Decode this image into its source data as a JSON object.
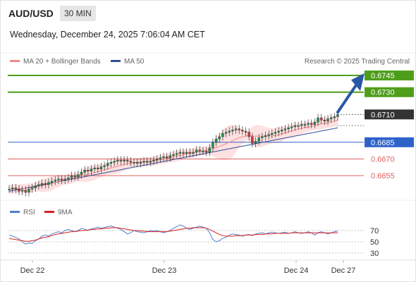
{
  "header": {
    "symbol": "AUD/USD",
    "timeframe": "30 MIN",
    "datetime": "Wednesday, December 24, 2025 7:06:04 AM CET",
    "credit": "Research © 2025 Trading Central"
  },
  "colors": {
    "resistance": "#4e9e1b",
    "support_blue": "#2e62c9",
    "support_red": "#e06060",
    "current": "#333333",
    "ma20": "#f08a8a",
    "bollinger_fill": "#fde0e0",
    "ma50": "#30509a",
    "arrow": "#2a56a8",
    "rsi": "#5080d0",
    "rsi_ma": "#d81e1e",
    "bull": "#1a9a50",
    "bear": "#d33b3b"
  },
  "chart_data": [
    {
      "type": "candlestick",
      "legend": [
        {
          "name": "MA 20 + Bollinger Bands",
          "color": "#f08a8a"
        },
        {
          "name": "MA 50",
          "color": "#30509a"
        }
      ],
      "legend_placement": "top-left",
      "grid": false,
      "ylim": [
        0.6638,
        0.6752
      ],
      "x_ticks": [
        "Dec 22",
        "Dec 23",
        "Dec 24",
        "Dec 27"
      ],
      "price_levels": [
        {
          "label": "0.6745",
          "value": 0.6745,
          "kind": "resistance"
        },
        {
          "label": "0.6730",
          "value": 0.673,
          "kind": "resistance"
        },
        {
          "label": "0.6710",
          "value": 0.671,
          "kind": "current"
        },
        {
          "label": "0.6685",
          "value": 0.6685,
          "kind": "support_blue"
        },
        {
          "label": "0.6670",
          "value": 0.667,
          "kind": "support_red"
        },
        {
          "label": "0.6655",
          "value": 0.6655,
          "kind": "support_red"
        }
      ],
      "close_series": [
        0.6643,
        0.6644,
        0.6643,
        0.6641,
        0.6642,
        0.664,
        0.6643,
        0.6644,
        0.6646,
        0.6647,
        0.6648,
        0.6647,
        0.6649,
        0.665,
        0.6651,
        0.6652,
        0.6651,
        0.6652,
        0.6653,
        0.6655,
        0.6654,
        0.6656,
        0.6658,
        0.666,
        0.6659,
        0.6661,
        0.6662,
        0.6661,
        0.6663,
        0.6664,
        0.6666,
        0.6667,
        0.6668,
        0.6669,
        0.6668,
        0.6669,
        0.6668,
        0.6667,
        0.6667,
        0.6666,
        0.6667,
        0.6668,
        0.6667,
        0.6668,
        0.6669,
        0.667,
        0.6671,
        0.6672,
        0.6671,
        0.6673,
        0.6674,
        0.6675,
        0.6676,
        0.6675,
        0.6676,
        0.6675,
        0.6676,
        0.6678,
        0.6677,
        0.6677,
        0.6676,
        0.668,
        0.6685,
        0.6688,
        0.669,
        0.6693,
        0.6694,
        0.6695,
        0.6696,
        0.6697,
        0.6696,
        0.6695,
        0.6694,
        0.669,
        0.6684,
        0.6686,
        0.6689,
        0.669,
        0.6691,
        0.6692,
        0.6693,
        0.6694,
        0.6695,
        0.6696,
        0.6697,
        0.6698,
        0.6699,
        0.67,
        0.67,
        0.6701,
        0.6701,
        0.6702,
        0.6701,
        0.6703,
        0.6707,
        0.6705,
        0.6704,
        0.6706,
        0.6707,
        0.6708,
        0.671
      ],
      "ma20_start": 0.6642,
      "ma20_end": 0.6704,
      "ma50_start": 0.6641,
      "ma50_end": 0.6698
    },
    {
      "type": "line",
      "legend": [
        {
          "name": "RSI",
          "color": "#5080d0"
        },
        {
          "name": "9MA",
          "color": "#d81e1e"
        }
      ],
      "legend_placement": "top-left",
      "y_ticks": [
        "70",
        "50",
        "30"
      ],
      "ylim": [
        20,
        90
      ],
      "rsi_series": [
        62,
        60,
        58,
        55,
        50,
        46,
        48,
        47,
        52,
        55,
        60,
        62,
        60,
        64,
        66,
        68,
        66,
        70,
        72,
        70,
        68,
        70,
        74,
        72,
        70,
        73,
        74,
        76,
        74,
        75,
        77,
        78,
        76,
        74,
        72,
        68,
        64,
        66,
        70,
        68,
        67,
        66,
        68,
        70,
        69,
        70,
        68,
        66,
        68,
        70,
        74,
        77,
        80,
        78,
        74,
        72,
        74,
        76,
        78,
        76,
        74,
        66,
        54,
        50,
        52,
        56,
        58,
        62,
        64,
        63,
        62,
        60,
        62,
        63,
        61,
        64,
        65,
        66,
        64,
        66,
        67,
        66,
        65,
        66,
        67,
        65,
        66,
        68,
        66,
        65,
        66,
        68,
        66,
        62,
        66,
        68,
        66,
        64,
        66,
        68,
        69
      ],
      "rsi_ma_series": [
        56,
        55,
        54,
        53,
        52,
        51,
        51,
        52,
        53,
        55,
        57,
        58,
        59,
        61,
        63,
        64,
        65,
        66,
        67,
        68,
        68,
        69,
        70,
        70,
        71,
        72,
        72,
        73,
        73,
        74,
        74,
        75,
        75,
        75,
        74,
        73,
        72,
        71,
        70,
        70,
        69,
        69,
        68,
        68,
        68,
        68,
        68,
        68,
        68,
        69,
        70,
        71,
        72,
        73,
        74,
        74,
        75,
        75,
        75,
        75,
        74,
        72,
        69,
        66,
        63,
        61,
        60,
        60,
        60,
        61,
        61,
        61,
        62,
        62,
        62,
        63,
        63,
        63,
        64,
        64,
        64,
        65,
        65,
        65,
        65,
        65,
        66,
        66,
        66,
        66,
        66,
        66,
        66,
        66,
        66,
        66,
        66,
        66,
        66,
        66,
        66
      ]
    }
  ]
}
